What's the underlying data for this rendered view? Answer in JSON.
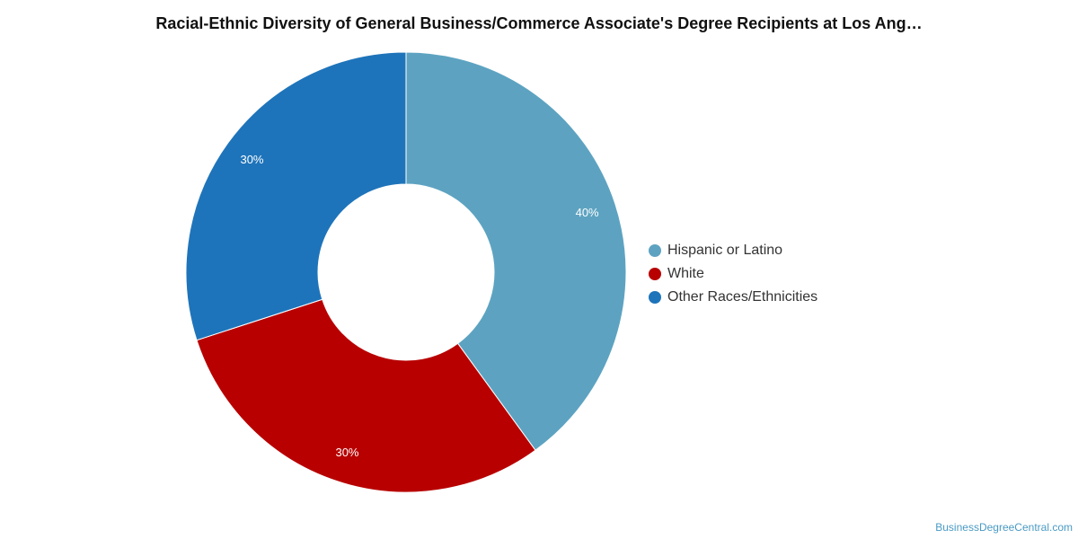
{
  "chart_data": {
    "type": "pie",
    "title": "Racial-Ethnic Diversity of General Business/Commerce Associate's Degree Recipients at Los Ang…",
    "donut": true,
    "slices": [
      {
        "label": "Hispanic or Latino",
        "value": 40,
        "value_label": "40%",
        "color": "#5da3c1"
      },
      {
        "label": "White",
        "value": 30,
        "value_label": "30%",
        "color": "#b80000"
      },
      {
        "label": "Other Races/Ethnicities",
        "value": 30,
        "value_label": "30%",
        "color": "#1e74ba"
      }
    ],
    "legend_position": "right"
  },
  "watermark": "BusinessDegreeCentral.com"
}
